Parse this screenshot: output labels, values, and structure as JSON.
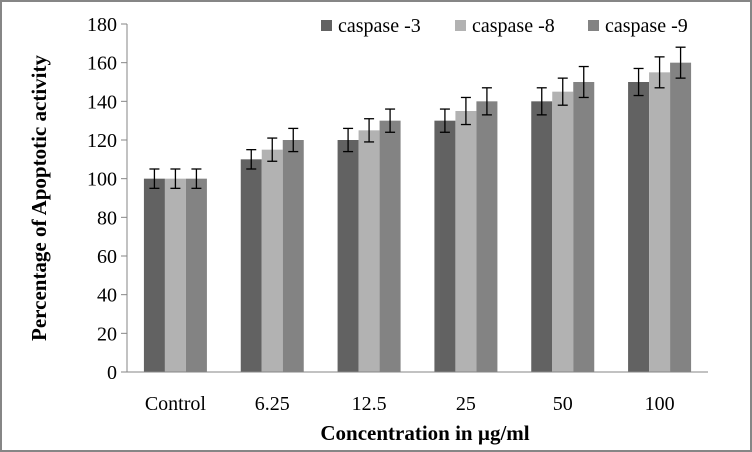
{
  "chart_data": {
    "type": "bar",
    "title": "",
    "xlabel": "Concentration  in µg/ml",
    "ylabel": "Percentage of Apoptotic activity",
    "categories": [
      "Control",
      "6.25",
      "12.5",
      "25",
      "50",
      "100"
    ],
    "series": [
      {
        "name": "caspase -3",
        "color": "#626262",
        "values": [
          100,
          110,
          120,
          130,
          140,
          150
        ],
        "errors": [
          5,
          5,
          6,
          6,
          7,
          7
        ]
      },
      {
        "name": "caspase -8",
        "color": "#b2b2b2",
        "values": [
          100,
          115,
          125,
          135,
          145,
          155
        ],
        "errors": [
          5,
          6,
          6,
          7,
          7,
          8
        ]
      },
      {
        "name": "caspase -9",
        "color": "#838383",
        "values": [
          100,
          120,
          130,
          140,
          150,
          160
        ],
        "errors": [
          5,
          6,
          6,
          7,
          8,
          8
        ]
      }
    ],
    "ylim": [
      0,
      180
    ],
    "yticks": [
      0,
      20,
      40,
      60,
      80,
      100,
      120,
      140,
      160,
      180
    ],
    "grid": false,
    "legend": "top-right",
    "error_bars": true
  }
}
